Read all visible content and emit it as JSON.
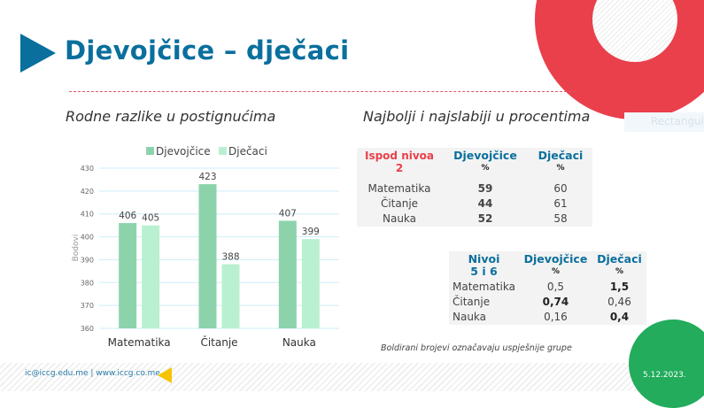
{
  "title": "Djevojčice – dječaci",
  "left_subtitle": "Rodne razlike u postignućima",
  "right_subtitle": "Najbolji i najslabiji u procentima",
  "ghost_label": "Rectangula",
  "chart_data": {
    "type": "bar",
    "categories": [
      "Matematika",
      "Čitanje",
      "Nauka"
    ],
    "series": [
      {
        "name": "Djevojčice",
        "values": [
          406,
          423,
          407
        ],
        "color": "#8cd3ac"
      },
      {
        "name": "Dječaci",
        "values": [
          405,
          388,
          399
        ],
        "color": "#b9f0d2"
      }
    ],
    "ylabel": "Bodovi",
    "xlabel": "",
    "ylim": [
      360,
      430
    ],
    "yticks": [
      360,
      370,
      380,
      390,
      400,
      410,
      420,
      430
    ],
    "grid": true,
    "legend": "top"
  },
  "table_low": {
    "header": [
      "Ispod nivoa 2",
      "Djevojčice",
      "Dječaci"
    ],
    "unit": "%",
    "rows": [
      [
        "Matematika",
        "59",
        "60"
      ],
      [
        "Čitanje",
        "44",
        "61"
      ],
      [
        "Nauka",
        "52",
        "58"
      ]
    ]
  },
  "table_high": {
    "header": [
      "Nivoi 5 i 6",
      "Djevojčice",
      "Dječaci"
    ],
    "unit": "%",
    "rows": [
      [
        "Matematika",
        "0,5",
        "1,5"
      ],
      [
        "Čitanje",
        "0,74",
        "0,46"
      ],
      [
        "Nauka",
        "0,16",
        "0,4"
      ]
    ]
  },
  "note": "Boldirani brojevi označavaju uspješnije grupe",
  "footer": "ic@iccg.edu.me | www.iccg.co.me",
  "date": "5.12.2023.",
  "colors": {
    "accent": "#0a6f9d",
    "red": "#e9404b",
    "green": "#22ac5c",
    "yellow": "#f5c400"
  }
}
